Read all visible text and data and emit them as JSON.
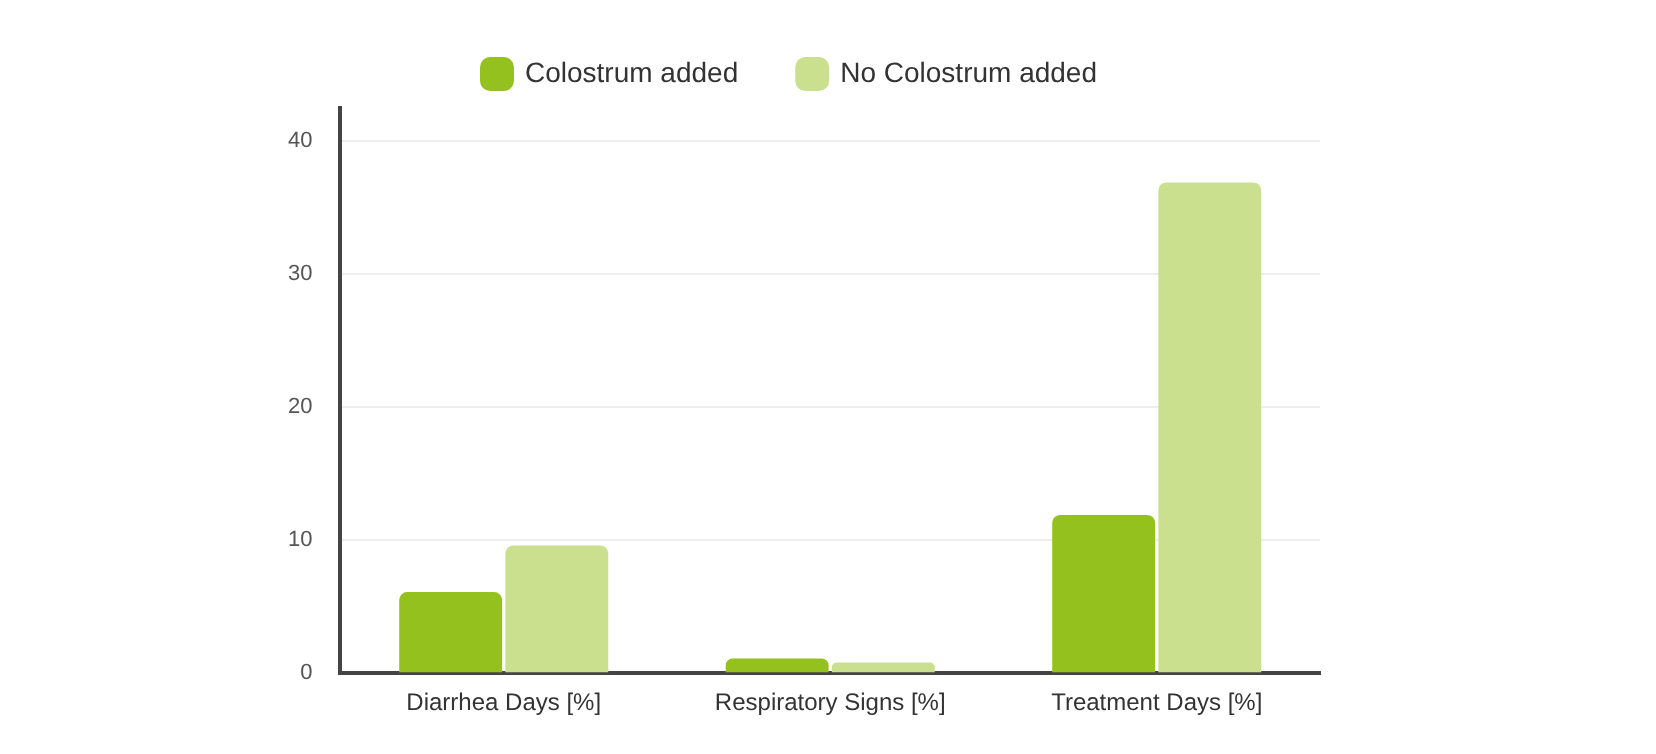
{
  "chart_data": {
    "type": "bar",
    "categories": [
      "Diarrhea Days [%]",
      "Respiratory Signs [%]",
      "Treatment Days [%]"
    ],
    "series": [
      {
        "name": "Colostrum added",
        "color": "#95c11f",
        "values": [
          6.1,
          1.1,
          11.9
        ]
      },
      {
        "name": "No Colostrum added",
        "color": "#cae08e",
        "values": [
          9.6,
          0.8,
          36.9
        ]
      }
    ],
    "ylim": [
      0,
      42.5
    ],
    "yticks": [
      0,
      10,
      20,
      30,
      40
    ],
    "grid": "y",
    "legend": "top"
  }
}
